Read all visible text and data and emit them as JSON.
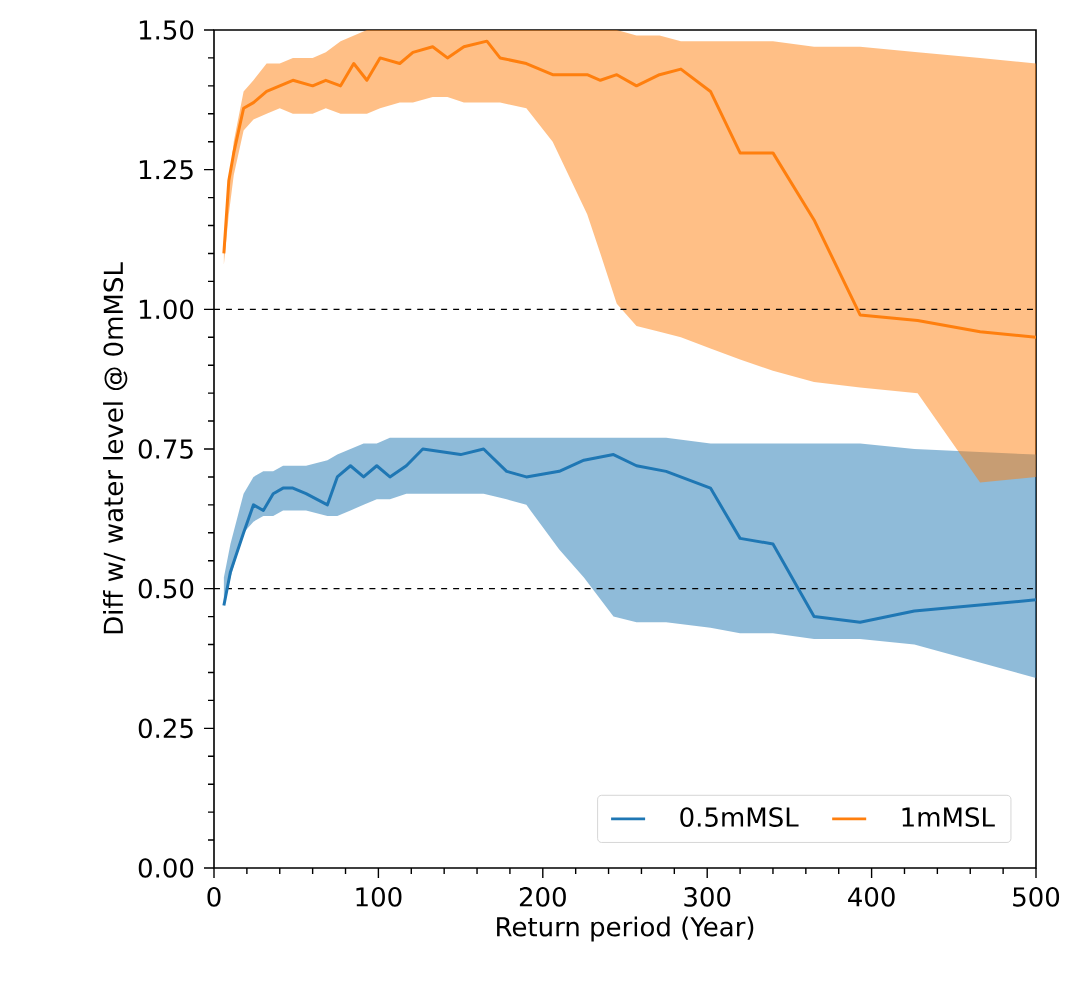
{
  "chart_data": {
    "type": "line",
    "xlabel": "Return period (Year)",
    "ylabel": "Diff w/ water level @ 0mMSL",
    "xlim": [
      0,
      500
    ],
    "ylim": [
      0,
      1.5
    ],
    "xticks": [
      0,
      100,
      200,
      300,
      400,
      500
    ],
    "yticks": [
      {
        "value": 0,
        "label": "0.00"
      },
      {
        "value": 0.25,
        "label": "0.25"
      },
      {
        "value": 0.5,
        "label": "0.50"
      },
      {
        "value": 0.75,
        "label": "0.75"
      },
      {
        "value": 1.0,
        "label": "1.00"
      },
      {
        "value": 1.25,
        "label": "1.25"
      },
      {
        "value": 1.5,
        "label": "1.50"
      }
    ],
    "legend": "bottom right",
    "grid": false,
    "line_style": "solid",
    "ref_lines": [
      {
        "axis": "y",
        "value": 1.0,
        "color": "#000000",
        "line_style": "dashed"
      },
      {
        "axis": "y",
        "value": 0.5,
        "color": "#000000",
        "line_style": "dashed"
      }
    ],
    "series": [
      {
        "name": "0.5mMSL",
        "color": "#1f77b4",
        "x": [
          6,
          10,
          18,
          24,
          30,
          36,
          42,
          48,
          56,
          69,
          75,
          83,
          91,
          99,
          107,
          117,
          127,
          150,
          164,
          178,
          190,
          210,
          225,
          243,
          257,
          275,
          302,
          320,
          340,
          365,
          393,
          426,
          500
        ],
        "values": [
          0.47,
          0.53,
          0.6,
          0.65,
          0.64,
          0.67,
          0.68,
          0.68,
          0.67,
          0.65,
          0.7,
          0.72,
          0.7,
          0.72,
          0.7,
          0.72,
          0.75,
          0.74,
          0.75,
          0.71,
          0.7,
          0.71,
          0.73,
          0.74,
          0.72,
          0.71,
          0.68,
          0.59,
          0.58,
          0.45,
          0.44,
          0.46,
          0.48
        ],
        "upper": [
          0.52,
          0.58,
          0.67,
          0.7,
          0.71,
          0.71,
          0.72,
          0.72,
          0.72,
          0.73,
          0.74,
          0.75,
          0.76,
          0.76,
          0.77,
          0.77,
          0.77,
          0.77,
          0.77,
          0.77,
          0.77,
          0.77,
          0.77,
          0.77,
          0.77,
          0.77,
          0.76,
          0.76,
          0.76,
          0.76,
          0.76,
          0.75,
          0.74
        ],
        "lower": [
          0.47,
          0.52,
          0.6,
          0.62,
          0.63,
          0.63,
          0.64,
          0.64,
          0.64,
          0.63,
          0.63,
          0.64,
          0.65,
          0.66,
          0.66,
          0.67,
          0.67,
          0.67,
          0.67,
          0.66,
          0.65,
          0.57,
          0.52,
          0.45,
          0.44,
          0.44,
          0.43,
          0.42,
          0.42,
          0.41,
          0.41,
          0.4,
          0.34
        ]
      },
      {
        "name": "1mMSL",
        "color": "#ff7f0e",
        "x": [
          6,
          9,
          12,
          18,
          24,
          32,
          40,
          48,
          60,
          68,
          77,
          85,
          93,
          101,
          113,
          121,
          133,
          142,
          152,
          166,
          174,
          190,
          206,
          227,
          235,
          245,
          257,
          271,
          284,
          302,
          320,
          340,
          365,
          393,
          428,
          466,
          500
        ],
        "values": [
          1.1,
          1.23,
          1.28,
          1.36,
          1.37,
          1.39,
          1.4,
          1.41,
          1.4,
          1.41,
          1.4,
          1.44,
          1.41,
          1.45,
          1.44,
          1.46,
          1.47,
          1.45,
          1.47,
          1.48,
          1.45,
          1.44,
          1.42,
          1.42,
          1.41,
          1.42,
          1.4,
          1.42,
          1.43,
          1.39,
          1.28,
          1.28,
          1.16,
          0.99,
          0.98,
          0.96,
          0.95
        ],
        "upper": [
          1.12,
          1.22,
          1.3,
          1.39,
          1.41,
          1.44,
          1.44,
          1.45,
          1.45,
          1.46,
          1.48,
          1.49,
          1.5,
          1.5,
          1.5,
          1.5,
          1.5,
          1.5,
          1.5,
          1.5,
          1.5,
          1.5,
          1.5,
          1.5,
          1.5,
          1.5,
          1.49,
          1.49,
          1.48,
          1.48,
          1.48,
          1.48,
          1.47,
          1.47,
          1.46,
          1.45,
          1.44
        ],
        "lower": [
          1.08,
          1.17,
          1.24,
          1.32,
          1.34,
          1.35,
          1.36,
          1.35,
          1.35,
          1.36,
          1.35,
          1.35,
          1.35,
          1.36,
          1.37,
          1.37,
          1.38,
          1.38,
          1.37,
          1.37,
          1.37,
          1.36,
          1.3,
          1.17,
          1.1,
          1.01,
          0.97,
          0.96,
          0.95,
          0.93,
          0.91,
          0.89,
          0.87,
          0.86,
          0.85,
          0.69,
          0.7
        ]
      }
    ]
  }
}
